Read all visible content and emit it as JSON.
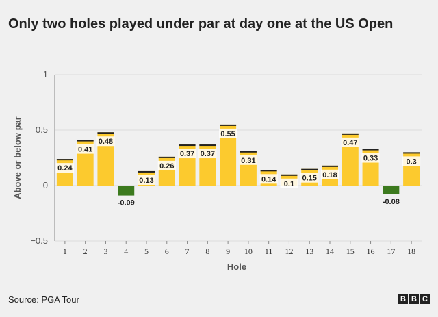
{
  "title": "Only two holes played under par at day one at the US Open",
  "source": "Source: PGA Tour",
  "logo": [
    "B",
    "B",
    "C"
  ],
  "colors": {
    "positive": "#fcca2e",
    "positive_top": "#222222",
    "negative": "#3c7a1e",
    "grid": "#dcdcdc",
    "axis": "#888888",
    "text": "#222222"
  },
  "chart_data": {
    "type": "bar",
    "categories": [
      "1",
      "2",
      "3",
      "4",
      "5",
      "6",
      "7",
      "8",
      "9",
      "10",
      "11",
      "12",
      "13",
      "14",
      "15",
      "16",
      "17",
      "18"
    ],
    "values": [
      0.24,
      0.41,
      0.48,
      -0.09,
      0.13,
      0.26,
      0.37,
      0.37,
      0.55,
      0.31,
      0.14,
      0.1,
      0.15,
      0.18,
      0.47,
      0.33,
      -0.08,
      0.3
    ],
    "value_labels": [
      "0.24",
      "0.41",
      "0.48",
      "-0.09",
      "0.13",
      "0.26",
      "0.37",
      "0.37",
      "0.55",
      "0.31",
      "0.14",
      "0.1",
      "0.15",
      "0.18",
      "0.47",
      "0.33",
      "-0.08",
      "0.3"
    ],
    "xlabel": "Hole",
    "ylabel": "Above or below par",
    "ylim": [
      -0.5,
      1
    ],
    "yticks": [
      1,
      0.5,
      0,
      -0.5
    ],
    "ytick_labels": [
      "1",
      "0.5",
      "0",
      "−0.5"
    ],
    "grid": true
  }
}
